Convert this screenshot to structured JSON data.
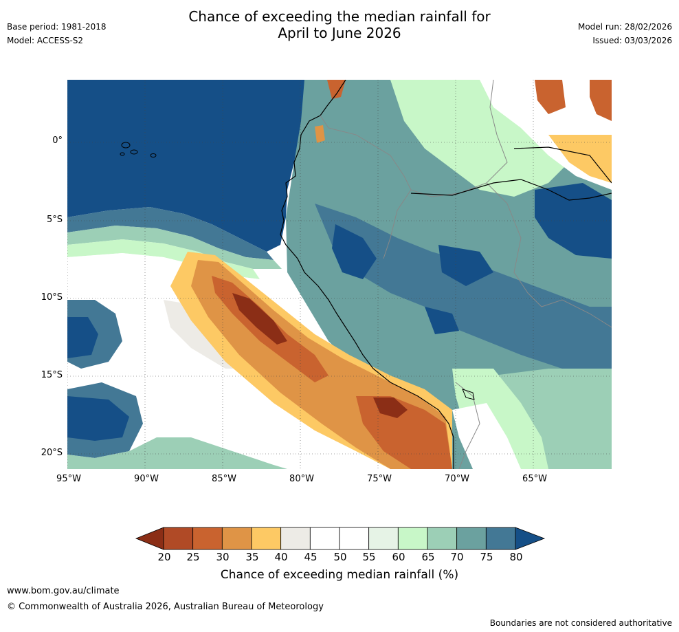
{
  "title_line1": "Chance of exceeding the median rainfall for",
  "title_line2": "April to June 2026",
  "base_period": "Base period: 1981-2018",
  "model": "Model: ACCESS-S2",
  "model_run": "Model run: 28/02/2026",
  "issued": "Issued: 03/03/2026",
  "lat_labels": [
    "0°",
    "5°S",
    "10°S",
    "15°S",
    "20°S"
  ],
  "lon_labels": [
    "95°W",
    "90°W",
    "85°W",
    "80°W",
    "75°W",
    "70°W",
    "65°W"
  ],
  "colorbar": {
    "ticks": [
      "20",
      "25",
      "30",
      "35",
      "40",
      "45",
      "50",
      "55",
      "60",
      "65",
      "70",
      "75",
      "80"
    ],
    "colors": [
      "#8b2e16",
      "#b04a26",
      "#c9632f",
      "#df9446",
      "#fdc964",
      "#edebe6",
      "#ffffff",
      "#ffffff",
      "#e6f3e6",
      "#c8f7c8",
      "#9ccfb6",
      "#6ba19f",
      "#437895",
      "#154f87"
    ],
    "label": "Chance of exceeding median rainfall (%)"
  },
  "footer": {
    "url": "www.bom.gov.au/climate",
    "copyright": "© Commonwealth of Australia 2026, Australian Bureau of Meteorology",
    "note": "Boundaries are not considered authoritative"
  }
}
